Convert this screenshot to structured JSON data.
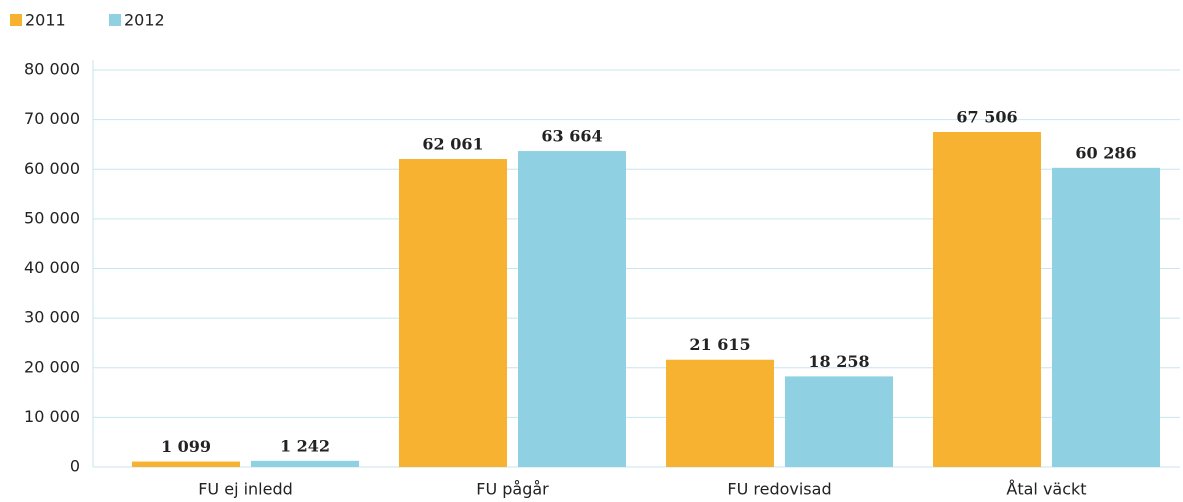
{
  "chart_data": {
    "type": "bar",
    "categories": [
      "FU ej inledd",
      "FU pågår",
      "FU redovisad",
      "Åtal väckt"
    ],
    "series": [
      {
        "name": "2011",
        "color": "#f7b232",
        "values": [
          1099,
          62061,
          21615,
          67506
        ],
        "value_labels": [
          "1 099",
          "62 061",
          "21 615",
          "67 506"
        ]
      },
      {
        "name": "2012",
        "color": "#8fd1e2",
        "values": [
          1242,
          63664,
          18258,
          60286
        ],
        "value_labels": [
          "1 242",
          "63 664",
          "18 258",
          "60 286"
        ]
      }
    ],
    "ylim": [
      0,
      80000
    ],
    "yticks": [
      0,
      {
        "value": 10000,
        "label": "10 000"
      },
      {
        "value": 20000,
        "label": "20 000"
      },
      {
        "value": 30000,
        "label": "30 000"
      },
      {
        "value": 40000,
        "label": "40 000"
      },
      {
        "value": 50000,
        "label": "50 000"
      },
      {
        "value": 60000,
        "label": "60 000"
      },
      {
        "value": 70000,
        "label": "70 000"
      },
      {
        "value": 80000,
        "label": "80 000"
      }
    ],
    "grid": true,
    "legend": "top-left"
  }
}
